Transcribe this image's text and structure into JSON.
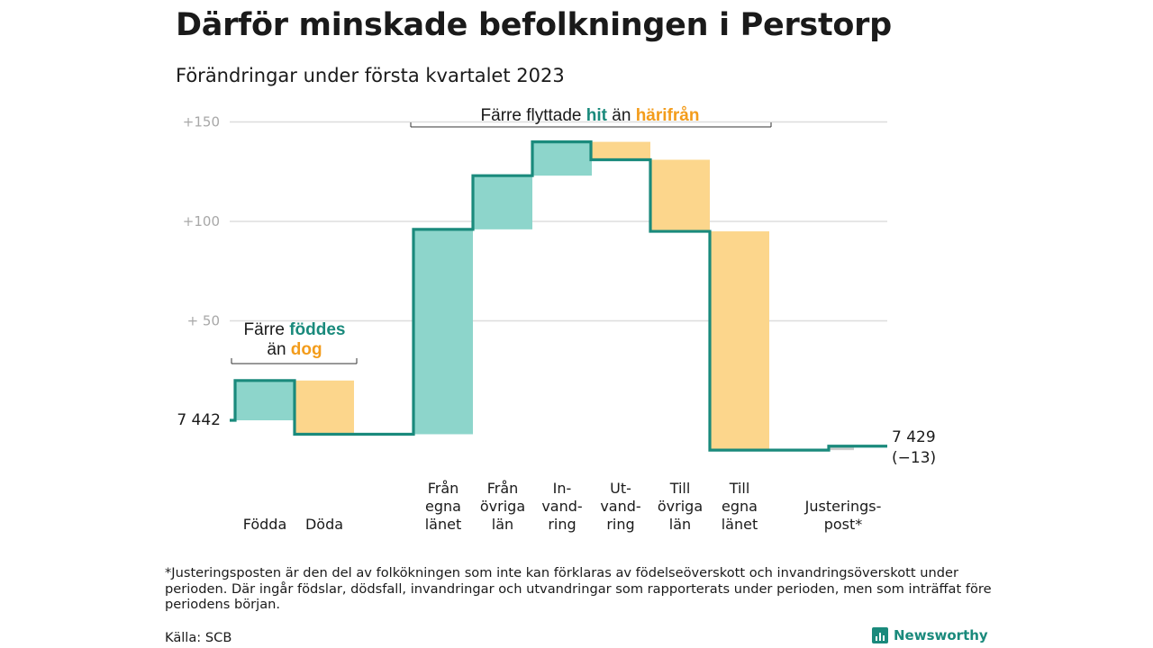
{
  "title": "Därför minskade befolkningen i Perstorp",
  "subtitle": "Förändringar under första kvartalet 2023",
  "chart_data": {
    "type": "waterfall",
    "start_value": 7442,
    "start_label": "7 442",
    "end_value": 7429,
    "end_label": "7 429",
    "end_change_label": "(−13)",
    "y_ticks": [
      {
        "value": 150,
        "label": "+150"
      },
      {
        "value": 100,
        "label": "+100"
      },
      {
        "value": 50,
        "label": "+ 50"
      }
    ],
    "steps": [
      {
        "lines": [
          "Födda"
        ],
        "change": 20,
        "kind": "in"
      },
      {
        "lines": [
          "Döda"
        ],
        "change": -27,
        "kind": "out"
      },
      {
        "lines": [
          "Från",
          "egna",
          "länet"
        ],
        "change": 103,
        "kind": "in"
      },
      {
        "lines": [
          "Från",
          "övriga",
          "län"
        ],
        "change": 27,
        "kind": "in"
      },
      {
        "lines": [
          "In-",
          "vand-",
          "ring"
        ],
        "change": 17,
        "kind": "in"
      },
      {
        "lines": [
          "Ut-",
          "vand-",
          "ring"
        ],
        "change": -9,
        "kind": "out"
      },
      {
        "lines": [
          "Till",
          "övriga",
          "län"
        ],
        "change": -36,
        "kind": "out"
      },
      {
        "lines": [
          "Till",
          "egna",
          "länet"
        ],
        "change": -110,
        "kind": "out"
      },
      {
        "lines": [
          "Justerings-",
          "post*"
        ],
        "change": 2,
        "kind": "adjust"
      }
    ],
    "annotations": [
      {
        "id": "birth",
        "line1": [
          "Färre ",
          "föddes"
        ],
        "line2": [
          "än ",
          "dog"
        ]
      },
      {
        "id": "migration",
        "parts": [
          "Färre flyttade ",
          "hit",
          " än ",
          "härifrån"
        ]
      }
    ],
    "colors": {
      "in": "#8dd5cb",
      "out": "#fcd68c",
      "adjust": "#cccccc",
      "line": "#1a8a7c",
      "hit": "#1a8a7c",
      "away": "#f39c1b",
      "grid": "#dddddd"
    }
  },
  "footnote": "*Justeringsposten är den del av folkökningen som inte kan förklaras av födelseöverskott och invandringsöverskott under perioden. Där ingår födslar, dödsfall, invandringar och utvandringar som rapporterats under perioden, men som inträffat före periodens början.",
  "source": "Källa: SCB",
  "brand": "Newsworthy"
}
